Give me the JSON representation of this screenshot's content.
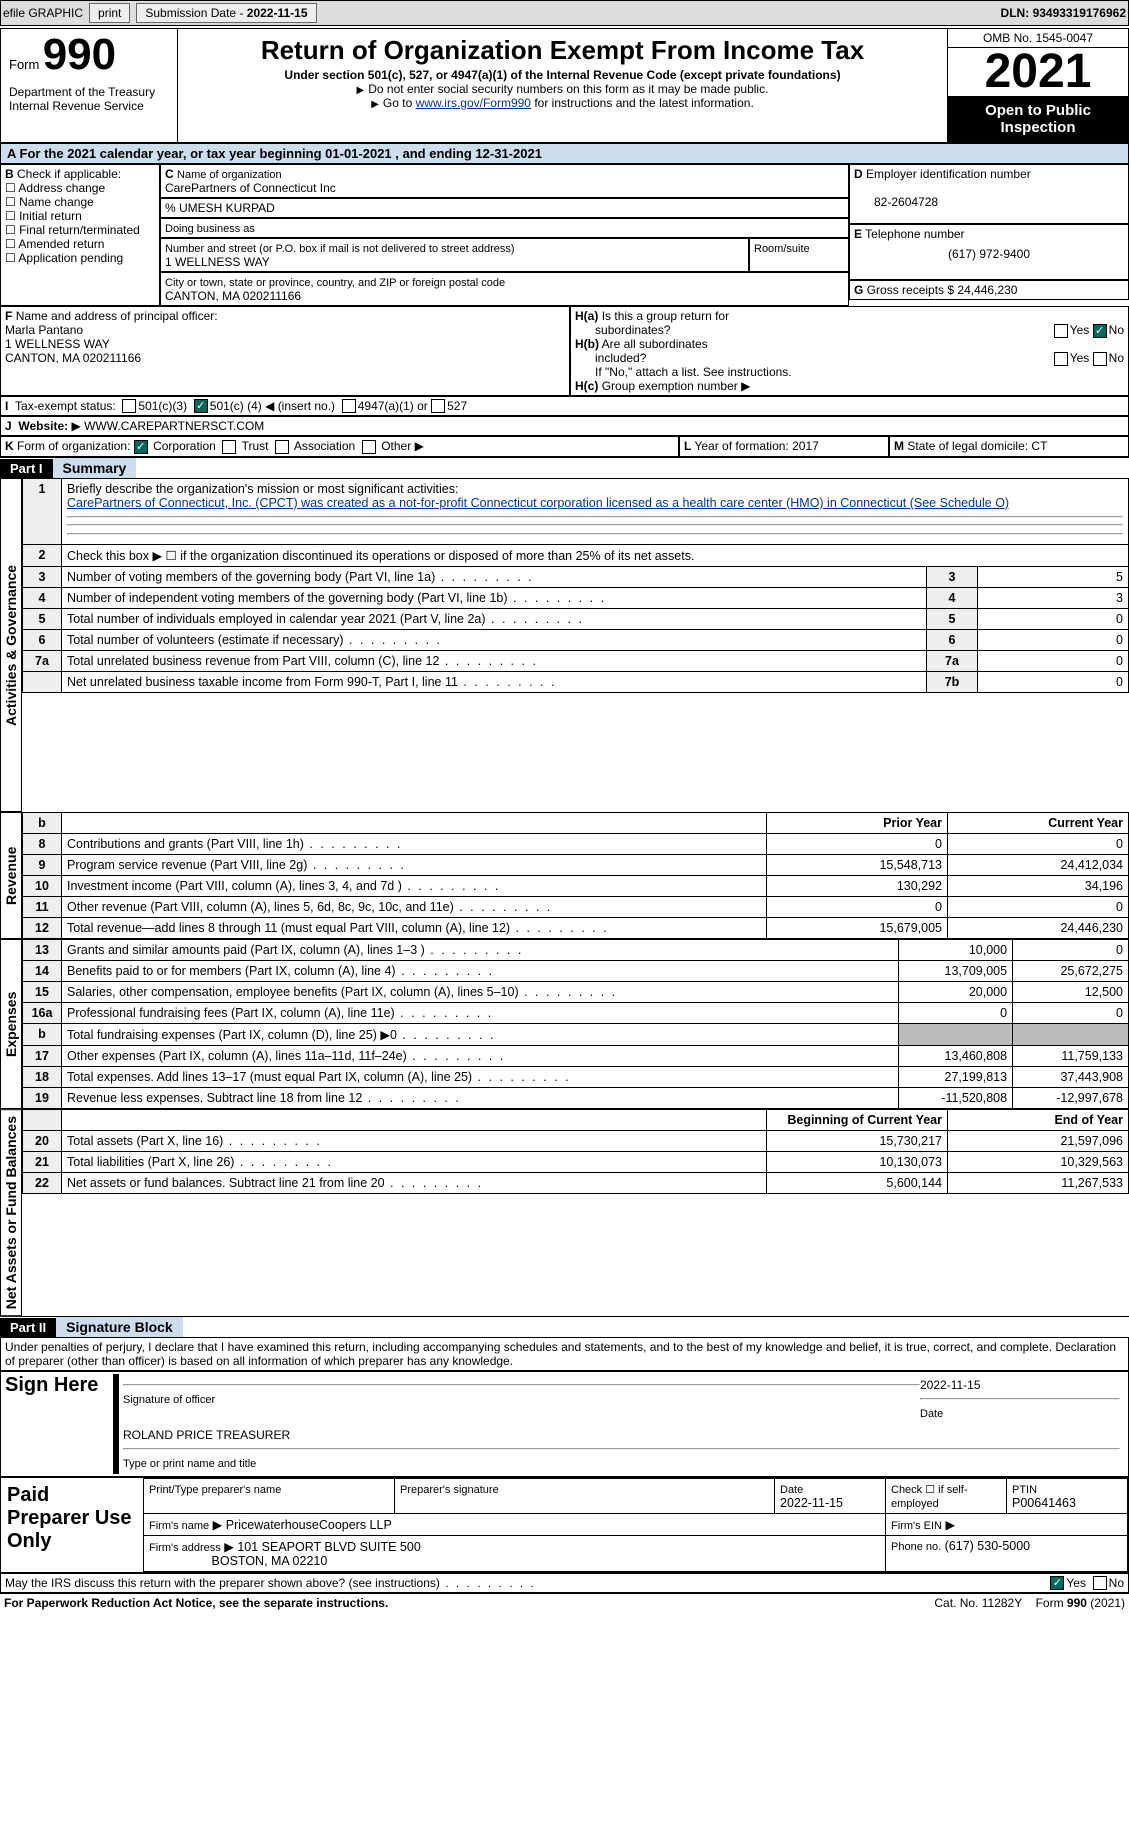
{
  "topbar": {
    "efile": "efile GRAPHIC",
    "print": "print",
    "subdate_label": "Submission Date -",
    "subdate": "2022-11-15",
    "dln_label": "DLN:",
    "dln": "93493319176962"
  },
  "header": {
    "form_word": "Form",
    "form_num": "990",
    "dept": "Department of the Treasury",
    "irs": "Internal Revenue Service",
    "title": "Return of Organization Exempt From Income Tax",
    "sub": "Under section 501(c), 527, or 4947(a)(1) of the Internal Revenue Code (except private foundations)",
    "nossn": "Do not enter social security numbers on this form as it may be made public.",
    "goto_pre": "Go to ",
    "goto_link": "www.irs.gov/Form990",
    "goto_post": " for instructions and the latest information.",
    "omb": "OMB No. 1545-0047",
    "year": "2021",
    "inspect1": "Open to Public",
    "inspect2": "Inspection"
  },
  "A": {
    "text": "For the 2021 calendar year, or tax year beginning 01-01-2021   , and ending 12-31-2021"
  },
  "B": {
    "label": "Check if applicable:",
    "opts": [
      "Address change",
      "Name change",
      "Initial return",
      "Final return/terminated",
      "Amended return",
      "Application pending"
    ]
  },
  "C": {
    "name_label": "Name of organization",
    "name": "CarePartners of Connecticut Inc",
    "co": "% UMESH KURPAD",
    "dba_label": "Doing business as",
    "dba": "",
    "street_label": "Number and street (or P.O. box if mail is not delivered to street address)",
    "room_label": "Room/suite",
    "street": "1 WELLNESS WAY",
    "city_label": "City or town, state or province, country, and ZIP or foreign postal code",
    "city": "CANTON, MA  020211166"
  },
  "D": {
    "label": "Employer identification number",
    "val": "82-2604728"
  },
  "E": {
    "label": "Telephone number",
    "val": "(617) 972-9400"
  },
  "G": {
    "label": "Gross receipts $",
    "val": "24,446,230"
  },
  "F": {
    "label": "Name and address of principal officer:",
    "name": "Marla Pantano",
    "addr1": "1 WELLNESS WAY",
    "addr2": "CANTON, MA  020211166"
  },
  "H": {
    "a_label": "Is this a group return for",
    "a_label2": "subordinates?",
    "b_label": "Are all subordinates",
    "b_label2": "included?",
    "note": "If \"No,\" attach a list. See instructions.",
    "c_label": "Group exemption number",
    "yes": "Yes",
    "no": "No"
  },
  "I": {
    "label": "Tax-exempt status:",
    "o1": "501(c)(3)",
    "o2_pre": "501(c) (",
    "o2_mid": "4",
    "o2_post": ") ◀ (insert no.)",
    "o3": "4947(a)(1) or",
    "o4": "527"
  },
  "J": {
    "label": "Website:",
    "val": "WWW.CAREPARTNERSCT.COM"
  },
  "K": {
    "label": "Form of organization:",
    "opts": [
      "Corporation",
      "Trust",
      "Association",
      "Other"
    ]
  },
  "L": {
    "label": "Year of formation:",
    "val": "2017"
  },
  "M": {
    "label": "State of legal domicile:",
    "val": "CT"
  },
  "part1": {
    "hdr": "Part I",
    "title": "Summary"
  },
  "s1": {
    "q1": "Briefly describe the organization's mission or most significant activities:",
    "mission": "CarePartners of Connecticut, Inc. (CPCT) was created as a not-for-profit Connecticut corporation licensed as a health care center (HMO) in Connecticut (See Schedule O)",
    "q2": "Check this box ▶ ☐  if the organization discontinued its operations or disposed of more than 25% of its net assets.",
    "rows": [
      {
        "n": "3",
        "t": "Number of voting members of the governing body (Part VI, line 1a)",
        "box": "3",
        "v": "5"
      },
      {
        "n": "4",
        "t": "Number of independent voting members of the governing body (Part VI, line 1b)",
        "box": "4",
        "v": "3"
      },
      {
        "n": "5",
        "t": "Total number of individuals employed in calendar year 2021 (Part V, line 2a)",
        "box": "5",
        "v": "0"
      },
      {
        "n": "6",
        "t": "Total number of volunteers (estimate if necessary)",
        "box": "6",
        "v": "0"
      },
      {
        "n": "7a",
        "t": "Total unrelated business revenue from Part VIII, column (C), line 12",
        "box": "7a",
        "v": "0"
      },
      {
        "n": "",
        "t": "Net unrelated business taxable income from Form 990-T, Part I, line 11",
        "box": "7b",
        "v": "0"
      }
    ]
  },
  "cols": {
    "prior": "Prior Year",
    "current": "Current Year",
    "begin": "Beginning of Current Year",
    "end": "End of Year"
  },
  "rev": {
    "label": "Revenue",
    "rows": [
      {
        "n": "8",
        "t": "Contributions and grants (Part VIII, line 1h)",
        "p": "0",
        "c": "0"
      },
      {
        "n": "9",
        "t": "Program service revenue (Part VIII, line 2g)",
        "p": "15,548,713",
        "c": "24,412,034"
      },
      {
        "n": "10",
        "t": "Investment income (Part VIII, column (A), lines 3, 4, and 7d )",
        "p": "130,292",
        "c": "34,196"
      },
      {
        "n": "11",
        "t": "Other revenue (Part VIII, column (A), lines 5, 6d, 8c, 9c, 10c, and 11e)",
        "p": "0",
        "c": "0"
      },
      {
        "n": "12",
        "t": "Total revenue—add lines 8 through 11 (must equal Part VIII, column (A), line 12)",
        "p": "15,679,005",
        "c": "24,446,230"
      }
    ]
  },
  "exp": {
    "label": "Expenses",
    "rows": [
      {
        "n": "13",
        "t": "Grants and similar amounts paid (Part IX, column (A), lines 1–3 )",
        "p": "10,000",
        "c": "0"
      },
      {
        "n": "14",
        "t": "Benefits paid to or for members (Part IX, column (A), line 4)",
        "p": "13,709,005",
        "c": "25,672,275"
      },
      {
        "n": "15",
        "t": "Salaries, other compensation, employee benefits (Part IX, column (A), lines 5–10)",
        "p": "20,000",
        "c": "12,500"
      },
      {
        "n": "16a",
        "t": "Professional fundraising fees (Part IX, column (A), line 11e)",
        "p": "0",
        "c": "0"
      },
      {
        "n": "b",
        "t": "Total fundraising expenses (Part IX, column (D), line 25) ▶0",
        "p": "",
        "c": "",
        "shade": true
      },
      {
        "n": "17",
        "t": "Other expenses (Part IX, column (A), lines 11a–11d, 11f–24e)",
        "p": "13,460,808",
        "c": "11,759,133"
      },
      {
        "n": "18",
        "t": "Total expenses. Add lines 13–17 (must equal Part IX, column (A), line 25)",
        "p": "27,199,813",
        "c": "37,443,908"
      },
      {
        "n": "19",
        "t": "Revenue less expenses. Subtract line 18 from line 12",
        "p": "-11,520,808",
        "c": "-12,997,678"
      }
    ]
  },
  "net": {
    "label": "Net Assets or Fund Balances",
    "rows": [
      {
        "n": "20",
        "t": "Total assets (Part X, line 16)",
        "p": "15,730,217",
        "c": "21,597,096"
      },
      {
        "n": "21",
        "t": "Total liabilities (Part X, line 26)",
        "p": "10,130,073",
        "c": "10,329,563"
      },
      {
        "n": "22",
        "t": "Net assets or fund balances. Subtract line 21 from line 20",
        "p": "5,600,144",
        "c": "11,267,533"
      }
    ]
  },
  "part2": {
    "hdr": "Part II",
    "title": "Signature Block",
    "decl": "Under penalties of perjury, I declare that I have examined this return, including accompanying schedules and statements, and to the best of my knowledge and belief, it is true, correct, and complete. Declaration of preparer (other than officer) is based on all information of which preparer has any knowledge."
  },
  "sign": {
    "here": "Sign Here",
    "sigoff": "Signature of officer",
    "date": "Date",
    "sigdate": "2022-11-15",
    "name": "ROLAND PRICE  TREASURER",
    "typename": "Type or print name and title"
  },
  "prep": {
    "label": "Paid Preparer Use Only",
    "printname": "Print/Type preparer's name",
    "prepsig": "Preparer's signature",
    "date_label": "Date",
    "date": "2022-11-15",
    "check_label": "Check ☐ if self-employed",
    "ptin_label": "PTIN",
    "ptin": "P00641463",
    "firm_label": "Firm's name",
    "firm": "PricewaterhouseCoopers LLP",
    "ein_label": "Firm's EIN",
    "addr_label": "Firm's address",
    "addr1": "101 SEAPORT BLVD SUITE 500",
    "addr2": "BOSTON, MA  02210",
    "phone_label": "Phone no.",
    "phone": "(617) 530-5000"
  },
  "discuss": {
    "q": "May the IRS discuss this return with the preparer shown above? (see instructions)",
    "yes": "Yes",
    "no": "No"
  },
  "footer": {
    "pra": "For Paperwork Reduction Act Notice, see the separate instructions.",
    "cat": "Cat. No. 11282Y",
    "form": "Form 990 (2021)"
  },
  "side": {
    "act": "Activities & Governance"
  },
  "colors": {
    "band": "#cde5f7",
    "black": "#000000",
    "link": "#003399",
    "green": "#00695c"
  }
}
